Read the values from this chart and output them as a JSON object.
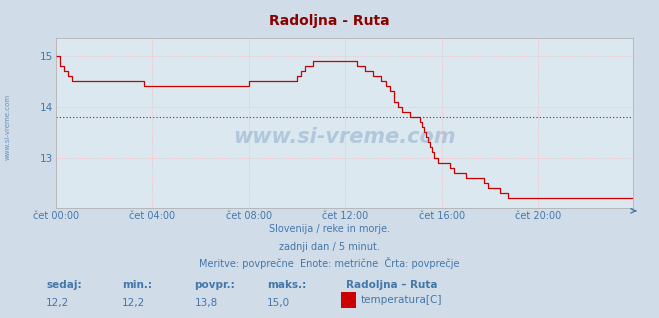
{
  "title": "Radoljna - Ruta",
  "title_color": "#8b0000",
  "bg_color": "#d0dce8",
  "plot_bg_color": "#dce8f0",
  "grid_color": "#ffaaaa",
  "spine_color": "#aaaaaa",
  "text_color": "#4477aa",
  "line_color": "#cc0000",
  "avg_line_color": "#cc0000",
  "avg_value": 13.8,
  "ylim": [
    12.0,
    15.35
  ],
  "yticks": [
    13,
    14,
    15
  ],
  "watermark": "www.si-vreme.com",
  "footer_line1": "Slovenija / reke in morje.",
  "footer_line2": "zadnji dan / 5 minut.",
  "footer_line3": "Meritve: povprečne  Enote: metrične  Črta: povprečje",
  "stat_labels": [
    "sedaj:",
    "min.:",
    "povpr.:",
    "maks.:"
  ],
  "stat_values": [
    "12,2",
    "12,2",
    "13,8",
    "15,0"
  ],
  "legend_station": "Radoljna – Ruta",
  "legend_label": "temperatura[C]",
  "legend_color": "#cc0000",
  "xtick_labels": [
    "čet 00:00",
    "čet 04:00",
    "čet 08:00",
    "čet 12:00",
    "čet 16:00",
    "čet 20:00"
  ],
  "xtick_positions": [
    0,
    48,
    96,
    144,
    192,
    240
  ],
  "num_points": 288,
  "temperature_data": [
    15.0,
    15.0,
    14.8,
    14.8,
    14.7,
    14.7,
    14.6,
    14.6,
    14.5,
    14.5,
    14.5,
    14.5,
    14.5,
    14.5,
    14.5,
    14.5,
    14.5,
    14.5,
    14.5,
    14.5,
    14.5,
    14.5,
    14.5,
    14.5,
    14.5,
    14.5,
    14.5,
    14.5,
    14.5,
    14.5,
    14.5,
    14.5,
    14.5,
    14.5,
    14.5,
    14.5,
    14.5,
    14.5,
    14.5,
    14.5,
    14.5,
    14.5,
    14.5,
    14.5,
    14.4,
    14.4,
    14.4,
    14.4,
    14.4,
    14.4,
    14.4,
    14.4,
    14.4,
    14.4,
    14.4,
    14.4,
    14.4,
    14.4,
    14.4,
    14.4,
    14.4,
    14.4,
    14.4,
    14.4,
    14.4,
    14.4,
    14.4,
    14.4,
    14.4,
    14.4,
    14.4,
    14.4,
    14.4,
    14.4,
    14.4,
    14.4,
    14.4,
    14.4,
    14.4,
    14.4,
    14.4,
    14.4,
    14.4,
    14.4,
    14.4,
    14.4,
    14.4,
    14.4,
    14.4,
    14.4,
    14.4,
    14.4,
    14.4,
    14.4,
    14.4,
    14.4,
    14.5,
    14.5,
    14.5,
    14.5,
    14.5,
    14.5,
    14.5,
    14.5,
    14.5,
    14.5,
    14.5,
    14.5,
    14.5,
    14.5,
    14.5,
    14.5,
    14.5,
    14.5,
    14.5,
    14.5,
    14.5,
    14.5,
    14.5,
    14.5,
    14.6,
    14.6,
    14.7,
    14.7,
    14.8,
    14.8,
    14.8,
    14.8,
    14.9,
    14.9,
    14.9,
    14.9,
    14.9,
    14.9,
    14.9,
    14.9,
    14.9,
    14.9,
    14.9,
    14.9,
    14.9,
    14.9,
    14.9,
    14.9,
    14.9,
    14.9,
    14.9,
    14.9,
    14.9,
    14.9,
    14.8,
    14.8,
    14.8,
    14.8,
    14.7,
    14.7,
    14.7,
    14.7,
    14.6,
    14.6,
    14.6,
    14.6,
    14.5,
    14.5,
    14.4,
    14.4,
    14.3,
    14.3,
    14.1,
    14.1,
    14.0,
    14.0,
    13.9,
    13.9,
    13.9,
    13.9,
    13.8,
    13.8,
    13.8,
    13.8,
    13.8,
    13.7,
    13.6,
    13.5,
    13.4,
    13.3,
    13.2,
    13.1,
    13.0,
    13.0,
    12.9,
    12.9,
    12.9,
    12.9,
    12.9,
    12.9,
    12.8,
    12.8,
    12.7,
    12.7,
    12.7,
    12.7,
    12.7,
    12.7,
    12.6,
    12.6,
    12.6,
    12.6,
    12.6,
    12.6,
    12.6,
    12.6,
    12.6,
    12.5,
    12.5,
    12.4,
    12.4,
    12.4,
    12.4,
    12.4,
    12.4,
    12.3,
    12.3,
    12.3,
    12.3,
    12.2,
    12.2,
    12.2,
    12.2,
    12.2,
    12.2,
    12.2,
    12.2,
    12.2,
    12.2,
    12.2,
    12.2,
    12.2,
    12.2,
    12.2,
    12.2,
    12.2,
    12.2,
    12.2,
    12.2,
    12.2,
    12.2,
    12.2,
    12.2,
    12.2,
    12.2,
    12.2,
    12.2,
    12.2,
    12.2,
    12.2,
    12.2,
    12.2,
    12.2,
    12.2,
    12.2,
    12.2,
    12.2,
    12.2,
    12.2,
    12.2,
    12.2,
    12.2,
    12.2,
    12.2,
    12.2,
    12.2,
    12.2,
    12.2,
    12.2,
    12.2,
    12.2,
    12.2,
    12.2,
    12.2,
    12.2,
    12.2,
    12.2,
    12.2,
    12.2,
    12.2,
    12.2,
    12.2
  ]
}
